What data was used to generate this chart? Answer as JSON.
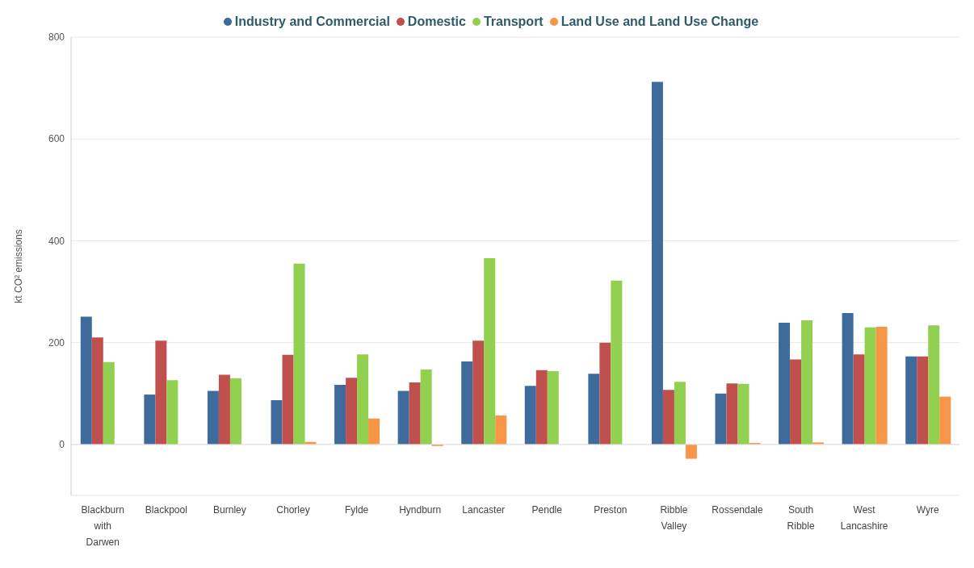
{
  "chart_data": {
    "type": "bar",
    "ylabel": "kt CO² emissions",
    "categories": [
      "Blackburn with Darwen",
      "Blackpool",
      "Burnley",
      "Chorley",
      "Fylde",
      "Hyndburn",
      "Lancaster",
      "Pendle",
      "Preston",
      "Ribble Valley",
      "Rossendale",
      "South Ribble",
      "West Lancashire",
      "Wyre"
    ],
    "series": [
      {
        "name": "Industry and Commercial",
        "color": "#3f6a9c",
        "values": [
          251,
          98,
          105,
          87,
          117,
          105,
          163,
          115,
          139,
          712,
          100,
          239,
          258,
          173
        ]
      },
      {
        "name": "Domestic",
        "color": "#c0504d",
        "values": [
          210,
          204,
          137,
          176,
          131,
          122,
          204,
          146,
          200,
          107,
          120,
          167,
          177,
          173
        ]
      },
      {
        "name": "Transport",
        "color": "#92d050",
        "values": [
          162,
          126,
          130,
          355,
          177,
          147,
          366,
          144,
          322,
          123,
          119,
          244,
          230,
          234
        ]
      },
      {
        "name": "Land Use and Land Use Change",
        "color": "#f79646",
        "values": [
          null,
          null,
          null,
          5,
          51,
          -3,
          57,
          null,
          null,
          -28,
          3,
          4,
          231,
          94
        ]
      }
    ],
    "ylim": [
      -100,
      800
    ],
    "yticks": [
      0,
      200,
      400,
      600,
      800
    ],
    "grid": "y",
    "legend": "top"
  }
}
